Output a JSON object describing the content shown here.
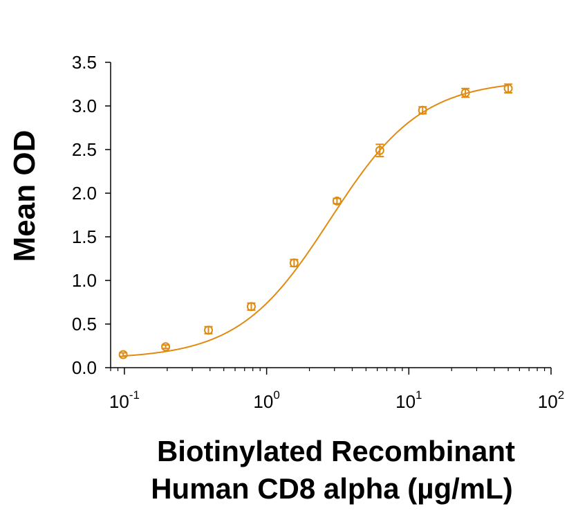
{
  "chart_data": {
    "type": "scatter",
    "title": "",
    "xlabel_lines": [
      "Biotinylated Recombinant",
      "Human CD8 alpha (µg/mL)"
    ],
    "ylabel": "Mean OD",
    "xscale": "log10",
    "xlim": [
      0.08,
      100
    ],
    "ylim": [
      0,
      3.5
    ],
    "yticks": [
      0.0,
      0.5,
      1.0,
      1.5,
      2.0,
      2.5,
      3.0,
      3.5
    ],
    "ytick_labels": [
      "0.0",
      "0.5",
      "1.0",
      "1.5",
      "2.0",
      "2.5",
      "3.0",
      "3.5"
    ],
    "xticks_major": [
      {
        "value": 0.1,
        "base": "10",
        "exp": "-1"
      },
      {
        "value": 1,
        "base": "10",
        "exp": "0"
      },
      {
        "value": 10,
        "base": "10",
        "exp": "1"
      },
      {
        "value": 100,
        "base": "10",
        "exp": "2"
      }
    ],
    "series": [
      {
        "name": "Mean OD",
        "color": "#E08A10",
        "x": [
          0.098,
          0.195,
          0.39,
          0.78,
          1.56,
          3.125,
          6.25,
          12.5,
          25,
          50
        ],
        "y": [
          0.15,
          0.24,
          0.43,
          0.7,
          1.2,
          1.91,
          2.49,
          2.95,
          3.15,
          3.2
        ],
        "err": [
          0.02,
          0.02,
          0.04,
          0.04,
          0.04,
          0.03,
          0.07,
          0.04,
          0.05,
          0.05
        ]
      }
    ],
    "fit": {
      "type": "4PL",
      "bottom": 0.1,
      "top": 3.3,
      "ec50": 2.8,
      "hill": 1.35
    }
  }
}
